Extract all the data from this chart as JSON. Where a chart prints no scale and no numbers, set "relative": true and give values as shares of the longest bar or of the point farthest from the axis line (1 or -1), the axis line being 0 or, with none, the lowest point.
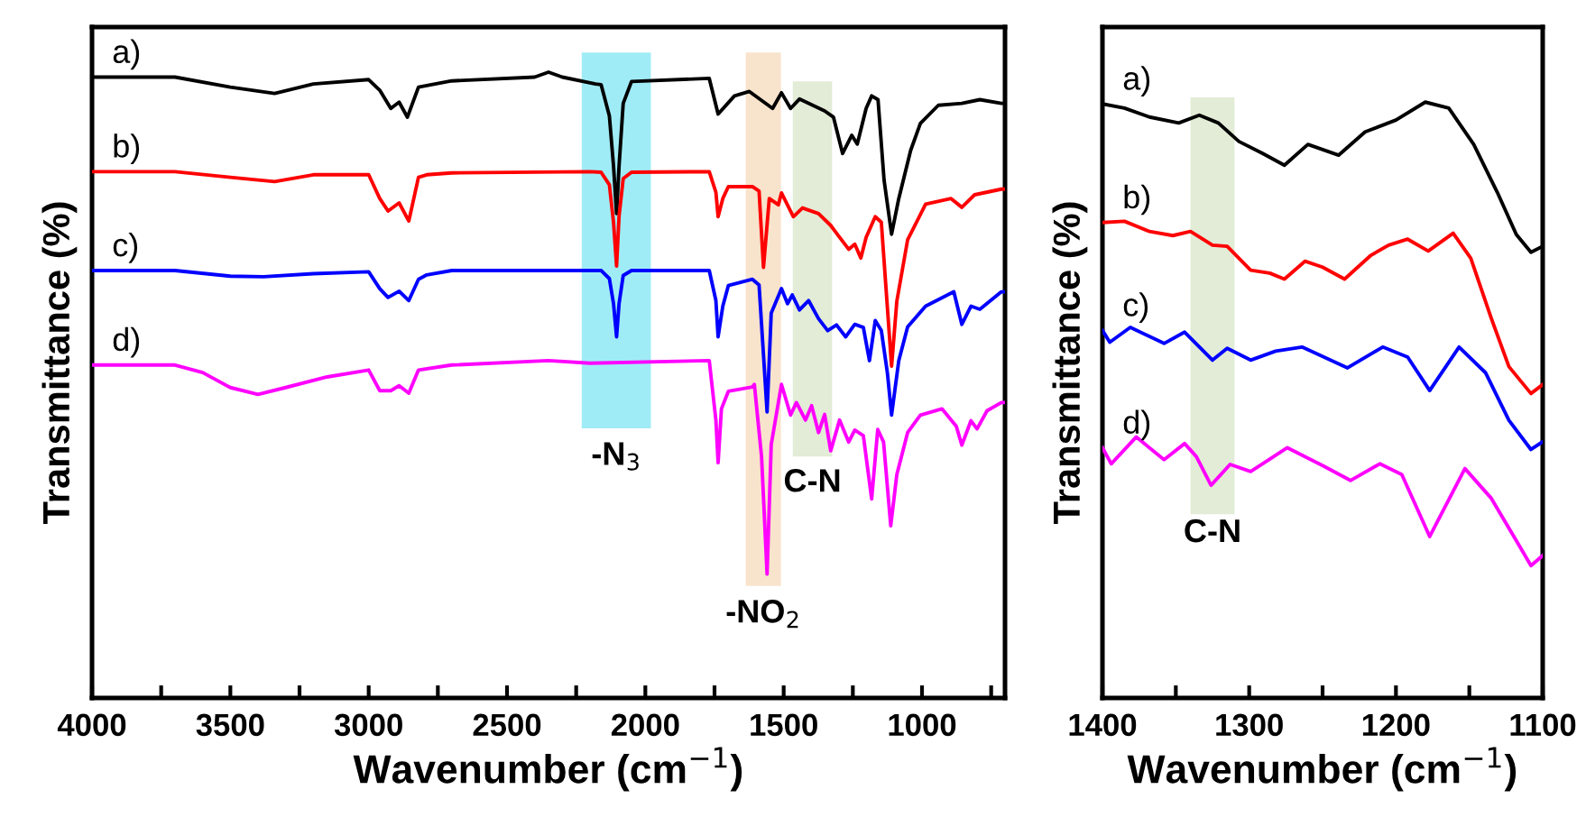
{
  "chart_data": [
    {
      "type": "line",
      "relative": true,
      "xlabel": "Wavenumber (cm$^{−1}$)",
      "ylabel": "Transmittance (%)",
      "xlim": [
        4000,
        700
      ],
      "xticks": [
        4000,
        {
          "value": 3750,
          "label": null
        },
        3500,
        {
          "value": 3250,
          "label": null
        },
        3000,
        {
          "value": 2750,
          "label": null
        },
        2500,
        {
          "value": 2250,
          "label": null
        },
        2000,
        {
          "value": 1750,
          "label": null
        },
        1500,
        {
          "value": 1250,
          "label": null
        },
        1000,
        {
          "value": 750,
          "label": null
        }
      ],
      "tick_labels": "x",
      "grid": false,
      "legend": false,
      "marker": "none",
      "line_style": "solid",
      "series": [
        {
          "name": "a)",
          "color": "#000000",
          "x": [
            4000,
            3700,
            3500,
            3340,
            3200,
            3000,
            2960,
            2920,
            2890,
            2860,
            2820,
            2700,
            2400,
            2350,
            2300,
            2180,
            2160,
            2130,
            2115,
            2104,
            2095,
            2080,
            2050,
            1769,
            1737,
            1678,
            1624,
            1540,
            1508,
            1475,
            1443,
            1352,
            1320,
            1287,
            1254,
            1234,
            1202,
            1182,
            1159,
            1137,
            1110,
            1084,
            1041,
            1006,
            941,
            856,
            791,
            713,
            700
          ],
          "values": [
            0.992,
            0.992,
            0.976,
            0.966,
            0.981,
            0.988,
            0.971,
            0.942,
            0.952,
            0.928,
            0.976,
            0.986,
            0.992,
            1.0,
            0.992,
            0.981,
            0.98,
            0.93,
            0.85,
            0.774,
            0.85,
            0.95,
            0.985,
            0.99,
            0.933,
            0.962,
            0.969,
            0.942,
            0.967,
            0.942,
            0.957,
            0.938,
            0.928,
            0.87,
            0.899,
            0.885,
            0.942,
            0.962,
            0.956,
            0.827,
            0.741,
            0.798,
            0.875,
            0.918,
            0.947,
            0.95,
            0.956,
            0.95,
            0.95
          ]
        },
        {
          "name": "b)",
          "color": "#ff0000",
          "x": [
            4000,
            3700,
            3500,
            3340,
            3200,
            3000,
            2960,
            2930,
            2890,
            2855,
            2820,
            2790,
            2700,
            2200,
            2160,
            2130,
            2115,
            2104,
            2095,
            2080,
            2050,
            1769,
            1745,
            1737,
            1720,
            1700,
            1613,
            1589,
            1573,
            1552,
            1519,
            1508,
            1465,
            1432,
            1374,
            1330,
            1298,
            1265,
            1243,
            1221,
            1202,
            1169,
            1147,
            1130,
            1110,
            1091,
            1052,
            987,
            895,
            856,
            810,
            713,
            700
          ],
          "values": [
            0.841,
            0.841,
            0.832,
            0.825,
            0.836,
            0.836,
            0.798,
            0.778,
            0.791,
            0.762,
            0.832,
            0.836,
            0.839,
            0.841,
            0.84,
            0.82,
            0.76,
            0.69,
            0.77,
            0.83,
            0.84,
            0.841,
            0.808,
            0.769,
            0.798,
            0.817,
            0.817,
            0.81,
            0.688,
            0.798,
            0.788,
            0.807,
            0.769,
            0.783,
            0.774,
            0.755,
            0.736,
            0.717,
            0.725,
            0.703,
            0.736,
            0.769,
            0.76,
            0.654,
            0.53,
            0.634,
            0.732,
            0.789,
            0.798,
            0.784,
            0.804,
            0.813,
            0.813
          ]
        },
        {
          "name": "c)",
          "color": "#0000ff",
          "x": [
            4000,
            3700,
            3500,
            3380,
            3200,
            3000,
            2960,
            2930,
            2890,
            2855,
            2820,
            2790,
            2700,
            2200,
            2160,
            2130,
            2115,
            2104,
            2095,
            2080,
            2050,
            1769,
            1745,
            1737,
            1720,
            1700,
            1613,
            1589,
            1560,
            1545,
            1508,
            1486,
            1469,
            1443,
            1410,
            1374,
            1341,
            1309,
            1276,
            1243,
            1212,
            1190,
            1169,
            1147,
            1125,
            1110,
            1084,
            1052,
            987,
            885,
            856,
            823,
            791,
            713,
            700
          ],
          "values": [
            0.683,
            0.683,
            0.674,
            0.673,
            0.678,
            0.681,
            0.654,
            0.64,
            0.65,
            0.635,
            0.669,
            0.676,
            0.683,
            0.683,
            0.683,
            0.67,
            0.63,
            0.577,
            0.63,
            0.675,
            0.683,
            0.683,
            0.635,
            0.577,
            0.626,
            0.659,
            0.669,
            0.66,
            0.457,
            0.615,
            0.654,
            0.63,
            0.644,
            0.62,
            0.635,
            0.606,
            0.587,
            0.596,
            0.577,
            0.597,
            0.592,
            0.539,
            0.603,
            0.587,
            0.519,
            0.452,
            0.539,
            0.593,
            0.626,
            0.649,
            0.597,
            0.626,
            0.621,
            0.649,
            0.649
          ]
        },
        {
          "name": "d)",
          "color": "#ff00ff",
          "x": [
            4000,
            3700,
            3600,
            3500,
            3400,
            3300,
            3150,
            3000,
            2960,
            2920,
            2890,
            2855,
            2820,
            2700,
            2350,
            2200,
            1769,
            1745,
            1737,
            1725,
            1700,
            1613,
            1606,
            1580,
            1560,
            1545,
            1508,
            1475,
            1454,
            1421,
            1399,
            1374,
            1352,
            1330,
            1298,
            1265,
            1243,
            1212,
            1182,
            1160,
            1139,
            1113,
            1091,
            1052,
            1006,
            928,
            876,
            856,
            823,
            801,
            765,
            713,
            700
          ],
          "values": [
            0.532,
            0.532,
            0.52,
            0.496,
            0.485,
            0.496,
            0.513,
            0.524,
            0.491,
            0.491,
            0.499,
            0.487,
            0.524,
            0.532,
            0.539,
            0.535,
            0.539,
            0.444,
            0.376,
            0.462,
            0.49,
            0.497,
            0.501,
            0.386,
            0.198,
            0.405,
            0.501,
            0.452,
            0.472,
            0.444,
            0.467,
            0.424,
            0.453,
            0.395,
            0.444,
            0.409,
            0.428,
            0.419,
            0.318,
            0.429,
            0.409,
            0.275,
            0.357,
            0.424,
            0.452,
            0.462,
            0.434,
            0.404,
            0.443,
            0.43,
            0.459,
            0.472,
            0.472
          ]
        }
      ],
      "bands": [
        {
          "axis": "x",
          "from": 2230,
          "to": 1980,
          "label": "-N$_{3}$",
          "color": "#a0ecf6"
        },
        {
          "axis": "x",
          "from": 1637,
          "to": 1510,
          "label": "-NO$_{2}$",
          "color": "#f8e3cc"
        },
        {
          "axis": "x",
          "from": 1467,
          "to": 1325,
          "label": "C-N",
          "color": "#e2ecd6"
        }
      ]
    },
    {
      "type": "line",
      "relative": true,
      "xlabel": "Wavenumber (cm$^{−1}$)",
      "ylabel": "Transmittance (%)",
      "xlim": [
        1400,
        1100
      ],
      "xticks": [
        1400,
        {
          "value": 1350,
          "label": null
        },
        1300,
        {
          "value": 1250,
          "label": null
        },
        1200,
        {
          "value": 1150,
          "label": null
        },
        1100
      ],
      "tick_labels": "x",
      "grid": false,
      "legend": false,
      "marker": "none",
      "line_style": "solid",
      "series": [
        {
          "name": "a)",
          "color": "#000000",
          "x": [
            1400,
            1385,
            1368,
            1348,
            1334,
            1321,
            1307,
            1291,
            1276,
            1260,
            1239,
            1221,
            1200,
            1180,
            1164,
            1147,
            1131,
            1118,
            1108,
            1100
          ],
          "values": [
            0.997,
            0.99,
            0.975,
            0.965,
            0.978,
            0.965,
            0.934,
            0.914,
            0.894,
            0.929,
            0.911,
            0.95,
            0.97,
            1.0,
            0.99,
            0.929,
            0.849,
            0.778,
            0.748,
            0.758
          ]
        },
        {
          "name": "b)",
          "color": "#ff0000",
          "x": [
            1400,
            1385,
            1368,
            1352,
            1340,
            1325,
            1315,
            1299,
            1286,
            1276,
            1262,
            1250,
            1235,
            1217,
            1205,
            1192,
            1178,
            1161,
            1149,
            1135,
            1123,
            1108,
            1100
          ],
          "values": [
            0.798,
            0.8,
            0.783,
            0.776,
            0.783,
            0.76,
            0.758,
            0.718,
            0.713,
            0.703,
            0.733,
            0.723,
            0.703,
            0.743,
            0.76,
            0.77,
            0.75,
            0.78,
            0.738,
            0.637,
            0.556,
            0.511,
            0.526
          ]
        },
        {
          "name": "c)",
          "color": "#0000ff",
          "x": [
            1400,
            1395,
            1381,
            1358,
            1344,
            1325,
            1315,
            1299,
            1282,
            1264,
            1233,
            1209,
            1192,
            1177,
            1157,
            1139,
            1123,
            1108,
            1100
          ],
          "values": [
            0.617,
            0.597,
            0.622,
            0.595,
            0.614,
            0.567,
            0.587,
            0.567,
            0.582,
            0.589,
            0.554,
            0.589,
            0.572,
            0.516,
            0.589,
            0.546,
            0.466,
            0.417,
            0.43
          ]
        },
        {
          "name": "d)",
          "color": "#ff00ff",
          "x": [
            1400,
            1394,
            1377,
            1358,
            1344,
            1336,
            1326,
            1313,
            1299,
            1274,
            1250,
            1231,
            1211,
            1196,
            1177,
            1153,
            1135,
            1118,
            1108,
            1100
          ],
          "values": [
            0.42,
            0.393,
            0.438,
            0.4,
            0.427,
            0.405,
            0.357,
            0.392,
            0.38,
            0.42,
            0.39,
            0.365,
            0.393,
            0.375,
            0.271,
            0.385,
            0.335,
            0.264,
            0.222,
            0.239
          ]
        }
      ],
      "bands": [
        {
          "axis": "x",
          "from": 1340,
          "to": 1310,
          "label": "C-N",
          "color": "#e2ecd6"
        }
      ]
    }
  ]
}
